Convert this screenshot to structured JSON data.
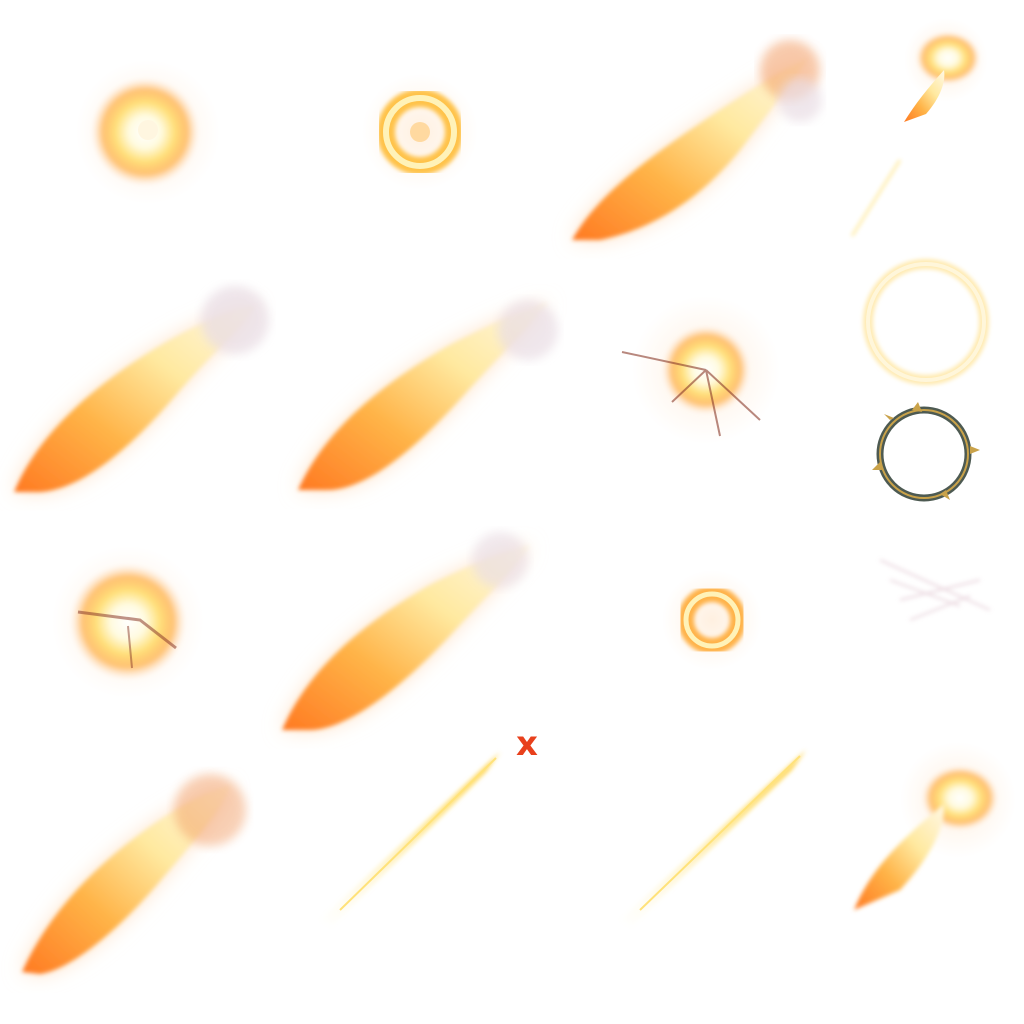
{
  "sheet": {
    "columns": 4,
    "rows": 4,
    "background": "#ffffff",
    "palette": {
      "core": "#fffbe0",
      "inner": "#ffe07a",
      "mid": "#ffab3a",
      "outer": "#ff6a1a",
      "glow": "#ffe3c8",
      "smoke": "#e9dde4",
      "ring_glow": "#ffeab0",
      "ring_metal": "#4d5a52",
      "ring_gold": "#c9a24a"
    },
    "marker": {
      "text": "x",
      "color": "#e8401c"
    },
    "sprites": [
      {
        "row": 1,
        "col": 1,
        "kind": "fireball-burst"
      },
      {
        "row": 1,
        "col": 2,
        "kind": "fire-ring-small"
      },
      {
        "row": 1,
        "col": 3,
        "kind": "flame-jet"
      },
      {
        "row": 1,
        "col": 4,
        "kind": "mini-flame-and-spark"
      },
      {
        "row": 2,
        "col": 1,
        "kind": "flame-jet"
      },
      {
        "row": 2,
        "col": 2,
        "kind": "flame-jet"
      },
      {
        "row": 2,
        "col": 3,
        "kind": "explosion-debris"
      },
      {
        "row": 2,
        "col": 4,
        "kind": "halo-and-thorn-ring"
      },
      {
        "row": 3,
        "col": 1,
        "kind": "explosion-core"
      },
      {
        "row": 3,
        "col": 2,
        "kind": "flame-jet"
      },
      {
        "row": 3,
        "col": 3,
        "kind": "fire-ring-small"
      },
      {
        "row": 3,
        "col": 4,
        "kind": "smoke-streaks"
      },
      {
        "row": 4,
        "col": 1,
        "kind": "flame-jet"
      },
      {
        "row": 4,
        "col": 2,
        "kind": "light-streak"
      },
      {
        "row": 4,
        "col": 3,
        "kind": "light-streak"
      },
      {
        "row": 4,
        "col": 4,
        "kind": "mini-flame"
      }
    ]
  }
}
